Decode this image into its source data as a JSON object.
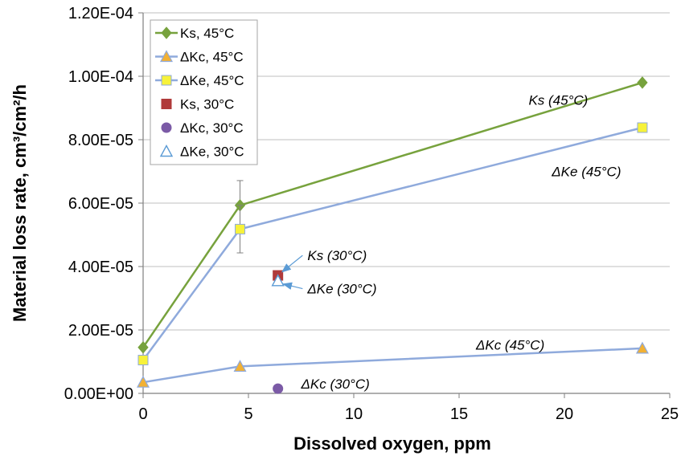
{
  "chart_data": {
    "type": "line",
    "xlabel": "Dissolved oxygen, ppm",
    "ylabel": "Material loss rate, cm³/cm²/h",
    "xlim": [
      0,
      25
    ],
    "ylim": [
      0,
      0.00012
    ],
    "x_ticks": [
      "0",
      "5",
      "10",
      "15",
      "20",
      "25"
    ],
    "y_ticks": [
      "0.00E+00",
      "2.00E-05",
      "4.00E-05",
      "6.00E-05",
      "8.00E-05",
      "1.00E-04",
      "1.20E-04"
    ],
    "grid": "horizontal",
    "legend_position": "top-left",
    "series": [
      {
        "name": "Ks, 45°C",
        "color": "#77a23d",
        "marker": "diamond",
        "line": true,
        "points": [
          {
            "x": 0,
            "y": 1.45e-05
          },
          {
            "x": 4.6,
            "y": 5.93e-05,
            "error": 7.8e-06
          },
          {
            "x": 23.7,
            "y": 9.8e-05
          }
        ]
      },
      {
        "name": "ΔKc, 45°C",
        "color": "#8faadc",
        "marker": "triangle-filled",
        "fill": "#f2b134",
        "line": true,
        "points": [
          {
            "x": 0,
            "y": 3.5e-06
          },
          {
            "x": 4.6,
            "y": 8.5e-06
          },
          {
            "x": 23.7,
            "y": 1.42e-05
          }
        ]
      },
      {
        "name": "ΔKe, 45°C",
        "color": "#8faadc",
        "marker": "square",
        "fill": "#f7f23a",
        "line": true,
        "points": [
          {
            "x": 0,
            "y": 1.05e-05
          },
          {
            "x": 4.6,
            "y": 5.18e-05,
            "error": 7.5e-06
          },
          {
            "x": 23.7,
            "y": 8.38e-05
          }
        ]
      },
      {
        "name": "Ks, 30°C",
        "color": "#b03a3a",
        "marker": "square",
        "fill": "#b03a3a",
        "line": false,
        "points": [
          {
            "x": 6.4,
            "y": 3.72e-05
          }
        ]
      },
      {
        "name": "ΔKc, 30°C",
        "color": "#7b5aa6",
        "marker": "circle",
        "fill": "#7b5aa6",
        "line": false,
        "points": [
          {
            "x": 6.4,
            "y": 1.5e-06
          }
        ]
      },
      {
        "name": "ΔKe, 30°C",
        "color": "#5b9bd5",
        "marker": "triangle-open",
        "fill": "#ffffff",
        "line": false,
        "points": [
          {
            "x": 6.4,
            "y": 3.55e-05
          }
        ]
      }
    ],
    "annotations": [
      {
        "text": "Ks (45°C)",
        "x": 18.3,
        "y": 9.1e-05
      },
      {
        "text": "ΔKe (45°C)",
        "x": 19.4,
        "y": 6.85e-05
      },
      {
        "text": "Ks (30°C)",
        "x": 7.8,
        "y": 4.2e-05,
        "arrow_to": {
          "x": 6.6,
          "y": 3.83e-05
        }
      },
      {
        "text": "ΔKe (30°C)",
        "x": 7.8,
        "y": 3.15e-05,
        "arrow_to": {
          "x": 6.65,
          "y": 3.45e-05
        }
      },
      {
        "text": "ΔKc (45°C)",
        "x": 15.8,
        "y": 1.38e-05
      },
      {
        "text": "ΔKc (30°C)",
        "x": 7.5,
        "y": 1.5e-06
      }
    ]
  }
}
